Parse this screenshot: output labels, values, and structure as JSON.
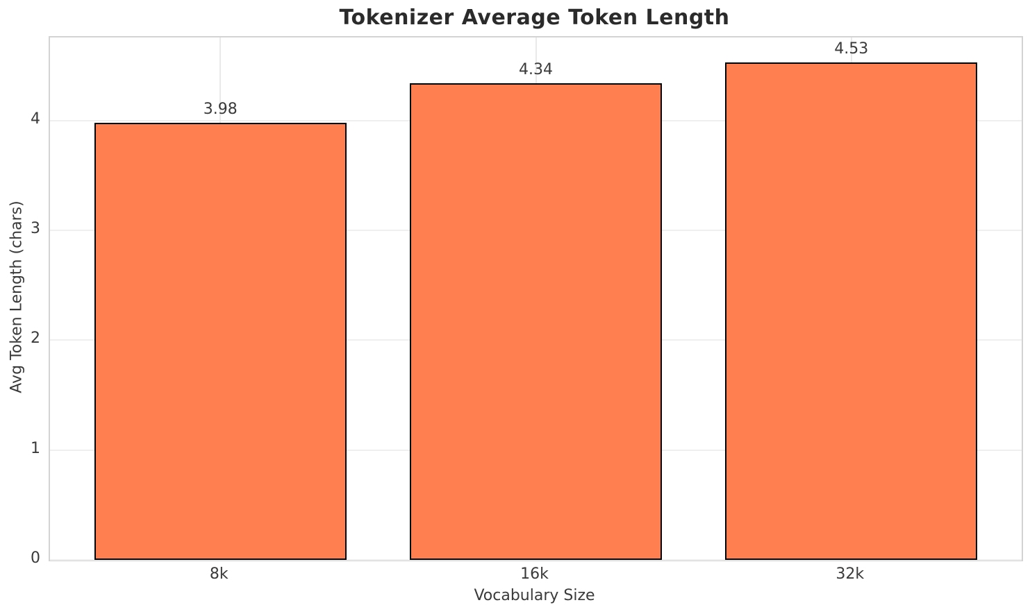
{
  "chart_data": {
    "type": "bar",
    "title": "Tokenizer Average Token Length",
    "categories": [
      "8k",
      "16k",
      "32k"
    ],
    "values": [
      3.98,
      4.34,
      4.53
    ],
    "value_labels": [
      "3.98",
      "4.34",
      "4.53"
    ],
    "xlabel": "Vocabulary Size",
    "ylabel": "Avg Token Length (chars)",
    "yticks": [
      0,
      1,
      2,
      3,
      4
    ],
    "ylim": [
      0,
      4.757
    ],
    "grid": true,
    "legend": null,
    "colors": {
      "bar_fill": "#FF7F50",
      "bar_edge": "#000000",
      "grid_h": "#efefef",
      "grid_v": "#e9e9e9",
      "spine": "#d3d3d3",
      "title_text": "#2b2b2b",
      "tick_text": "#3a3a3a",
      "background": "#ffffff"
    }
  }
}
